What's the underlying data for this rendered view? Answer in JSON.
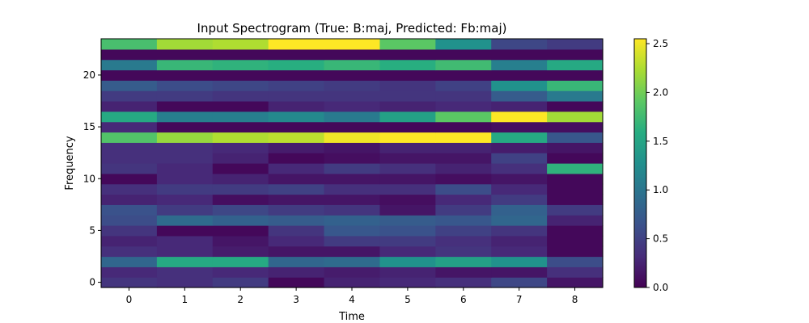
{
  "chart_data": {
    "type": "heatmap",
    "title": "Input Spectrogram (True: B:maj, Predicted: Fb:maj)",
    "xlabel": "Time",
    "ylabel": "Frequency",
    "x_ticks": [
      0,
      1,
      2,
      3,
      4,
      5,
      6,
      7,
      8
    ],
    "y_ticks": [
      0,
      5,
      10,
      15,
      20
    ],
    "colorbar_ticks": [
      "0.0",
      "0.5",
      "1.0",
      "1.5",
      "2.0",
      "2.5"
    ],
    "colormap": "viridis",
    "vmin": 0.0,
    "vmax": 2.55,
    "n_time": 9,
    "n_freq": 24,
    "values": [
      [
        0.4,
        0.35,
        0.45,
        0.05,
        0.25,
        0.3,
        0.35,
        0.55,
        0.15
      ],
      [
        0.3,
        0.35,
        0.3,
        0.25,
        0.2,
        0.25,
        0.15,
        0.15,
        0.35
      ],
      [
        0.85,
        1.55,
        1.55,
        0.85,
        0.9,
        1.3,
        1.45,
        1.3,
        0.6
      ],
      [
        0.35,
        0.3,
        0.2,
        0.15,
        0.15,
        0.3,
        0.4,
        0.3,
        0.05
      ],
      [
        0.25,
        0.3,
        0.15,
        0.3,
        0.45,
        0.45,
        0.35,
        0.25,
        0.05
      ],
      [
        0.4,
        0.05,
        0.05,
        0.4,
        0.7,
        0.65,
        0.5,
        0.4,
        0.05
      ],
      [
        0.6,
        0.9,
        0.8,
        0.75,
        0.8,
        0.75,
        0.7,
        0.85,
        0.25
      ],
      [
        0.65,
        0.45,
        0.55,
        0.45,
        0.4,
        0.15,
        0.45,
        0.8,
        0.45
      ],
      [
        0.25,
        0.3,
        0.1,
        0.15,
        0.15,
        0.1,
        0.3,
        0.45,
        0.05
      ],
      [
        0.35,
        0.45,
        0.45,
        0.5,
        0.35,
        0.35,
        0.6,
        0.3,
        0.05
      ],
      [
        0.05,
        0.3,
        0.25,
        0.15,
        0.15,
        0.15,
        0.1,
        0.15,
        0.05
      ],
      [
        0.4,
        0.3,
        0.05,
        0.3,
        0.45,
        0.35,
        0.25,
        0.35,
        1.65
      ],
      [
        0.35,
        0.35,
        0.25,
        0.05,
        0.1,
        0.15,
        0.15,
        0.5,
        0.05
      ],
      [
        0.35,
        0.35,
        0.3,
        0.2,
        0.15,
        0.25,
        0.25,
        0.2,
        0.15
      ],
      [
        1.85,
        2.15,
        2.25,
        2.3,
        2.5,
        2.55,
        2.55,
        1.55,
        0.7
      ],
      [
        0.3,
        0.05,
        0.05,
        0.05,
        0.05,
        0.05,
        0.05,
        0.1,
        0.1
      ],
      [
        1.55,
        1.1,
        1.1,
        1.2,
        1.05,
        1.45,
        1.9,
        2.55,
        2.2
      ],
      [
        0.25,
        0.05,
        0.05,
        0.25,
        0.3,
        0.25,
        0.3,
        0.25,
        0.05
      ],
      [
        0.45,
        0.45,
        0.4,
        0.4,
        0.4,
        0.4,
        0.4,
        0.75,
        1.05
      ],
      [
        0.75,
        0.6,
        0.55,
        0.5,
        0.45,
        0.4,
        0.5,
        1.3,
        1.7
      ],
      [
        0.05,
        0.05,
        0.05,
        0.05,
        0.05,
        0.05,
        0.05,
        0.05,
        0.05
      ],
      [
        1.05,
        1.7,
        1.65,
        1.6,
        1.7,
        1.6,
        1.75,
        1.1,
        1.55
      ],
      [
        0.05,
        0.05,
        0.05,
        0.05,
        0.05,
        0.05,
        0.05,
        0.05,
        0.05
      ],
      [
        1.8,
        2.2,
        2.25,
        2.55,
        2.55,
        1.9,
        1.3,
        0.55,
        0.45
      ]
    ]
  }
}
